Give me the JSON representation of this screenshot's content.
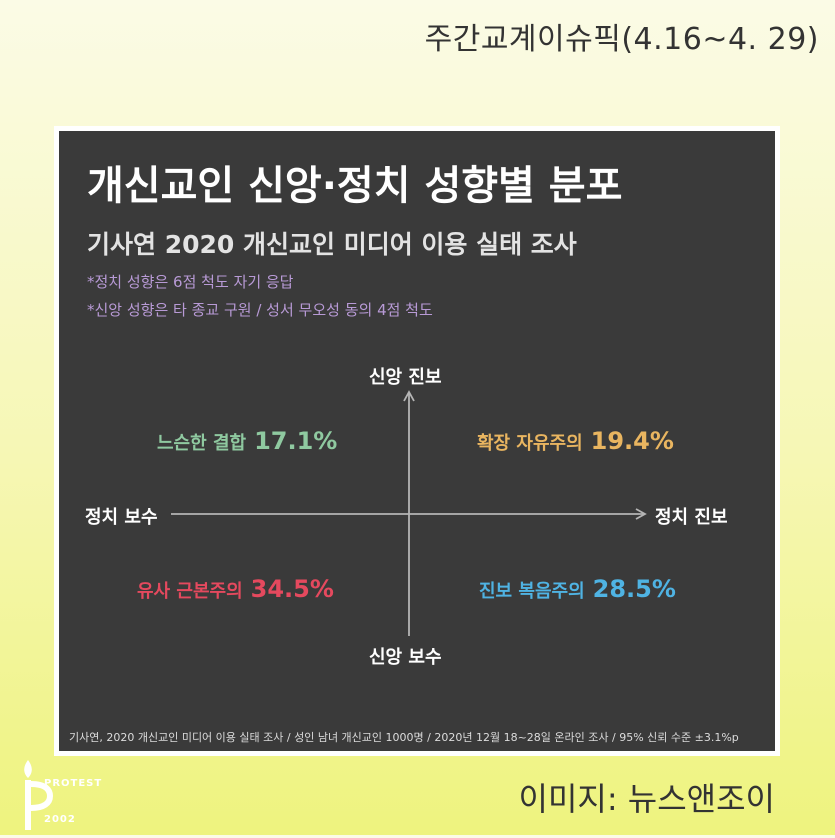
{
  "header": {
    "title": "주간교계이슈픽(4.16~4. 29)"
  },
  "card": {
    "headline": "개신교인 신앙·정치 성향별 분포",
    "subhead": "기사연 2020 개신교인 미디어 이용 실태 조사",
    "notes": [
      "*정치 성향은 6점 척도 자기 응답",
      "*신앙 성향은 타 종교 구원 / 성서 무오성 동의 4점 척도"
    ],
    "footer": "기사연, 2020 개신교인 미디어 이용 실태 조사 / 성인 남녀 개신교인 1000명 / 2020년 12월 18~28일 온라인 조사 / 95% 신뢰 수준 ±3.1%p"
  },
  "chart_data": {
    "type": "quadrant",
    "axes": {
      "y_top": "신앙 진보",
      "y_bottom": "신앙 보수",
      "x_left": "정치 보수",
      "x_right": "정치 진보"
    },
    "quadrants": [
      {
        "position": "top-left",
        "name": "느슨한 결합",
        "value": "17.1%",
        "color": "#8fc9a0"
      },
      {
        "position": "top-right",
        "name": "확장 자유주의",
        "value": "19.4%",
        "color": "#e9b560"
      },
      {
        "position": "bottom-left",
        "name": "유사 근본주의",
        "value": "34.5%",
        "color": "#e5495e"
      },
      {
        "position": "bottom-right",
        "name": "진보 복음주의",
        "value": "28.5%",
        "color": "#4fb3e3"
      }
    ]
  },
  "credit": "이미지: 뉴스앤조이",
  "logo": {
    "line1": "PROTEST",
    "line2": "2002"
  }
}
